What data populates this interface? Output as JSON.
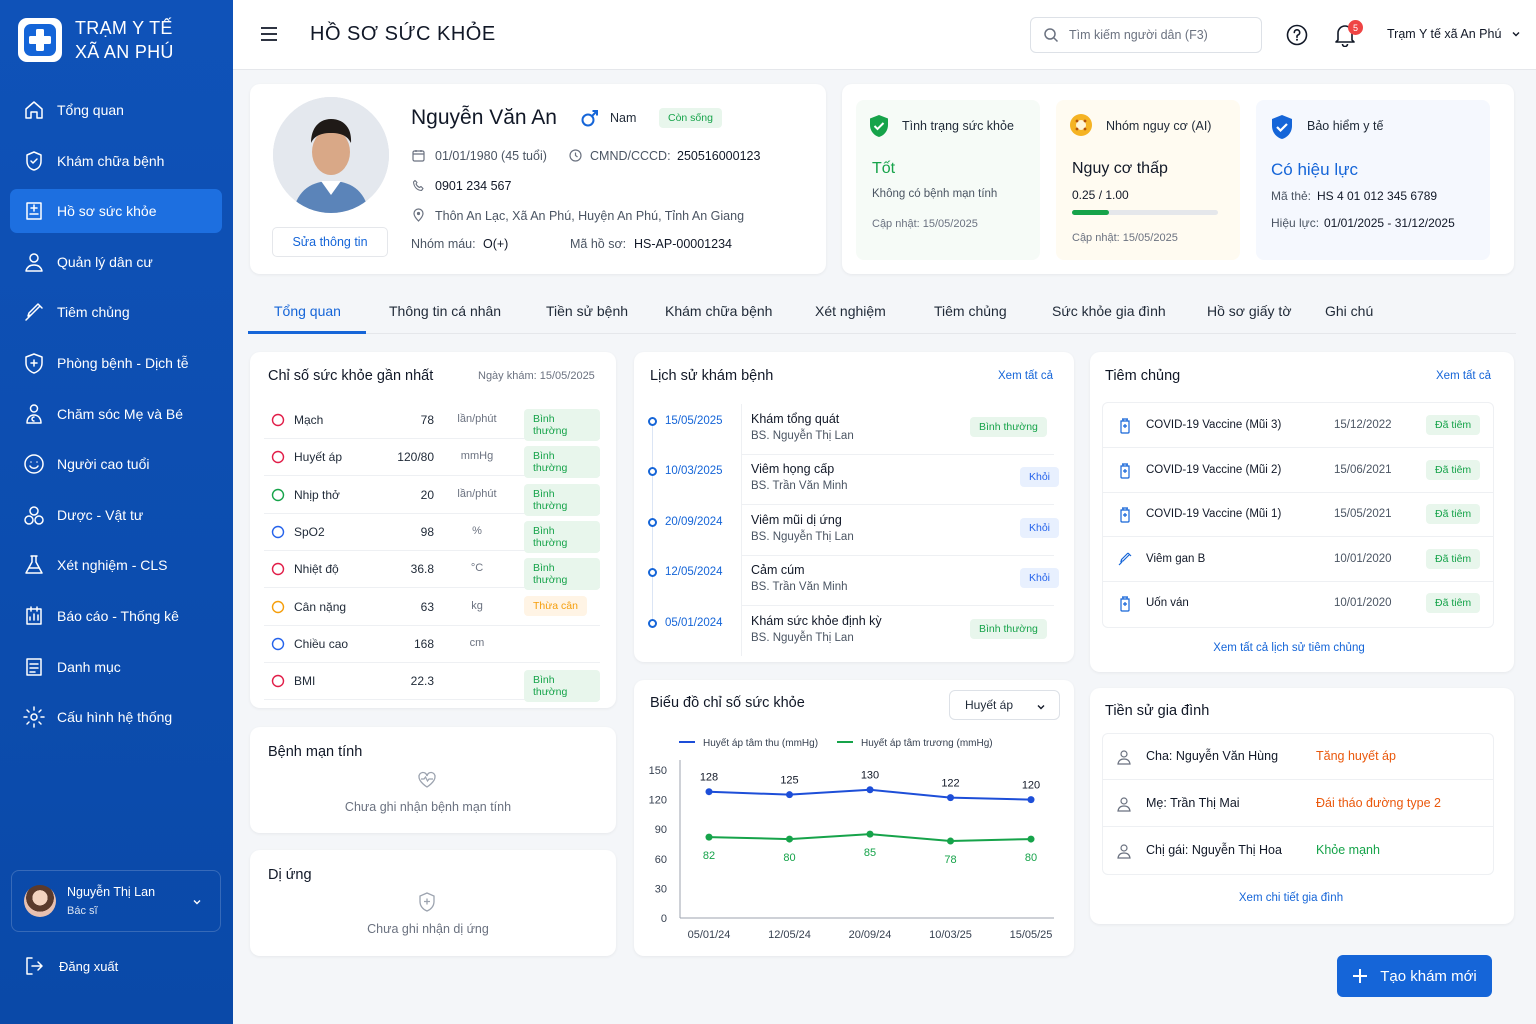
{
  "brand": {
    "line1": "TRẠM Y TẾ",
    "line2": "XÃ AN PHÚ"
  },
  "nav": [
    {
      "label": "Tổng quan",
      "icon": "home-icon"
    },
    {
      "label": "Khám chữa bệnh",
      "icon": "stethoscope-icon"
    },
    {
      "label": "Hồ sơ sức khỏe",
      "icon": "medical-record-icon",
      "active": true
    },
    {
      "label": "Quản lý dân cư",
      "icon": "user-icon"
    },
    {
      "label": "Tiêm chủng",
      "icon": "syringe-icon"
    },
    {
      "label": "Phòng bệnh - Dịch tễ",
      "icon": "shield-icon"
    },
    {
      "label": "Chăm sóc Mẹ và Bé",
      "icon": "mother-baby-icon"
    },
    {
      "label": "Người cao tuổi",
      "icon": "elderly-icon"
    },
    {
      "label": "Dược - Vật tư",
      "icon": "pills-icon"
    },
    {
      "label": "Xét nghiệm - CLS",
      "icon": "flask-icon"
    },
    {
      "label": "Báo cáo - Thống kê",
      "icon": "report-icon"
    },
    {
      "label": "Danh mục",
      "icon": "list-icon"
    },
    {
      "label": "Cấu hình hệ thống",
      "icon": "gear-icon"
    }
  ],
  "user": {
    "name": "Nguyễn Thị Lan",
    "role": "Bác sĩ"
  },
  "logout": "Đăng xuất",
  "header": {
    "title": "HỒ SƠ SỨC KHỎE",
    "search_placeholder": "Tìm kiếm người dân (F3)",
    "notif_count": "5",
    "org": "Trạm Y tế xã An Phú"
  },
  "patient": {
    "name": "Nguyễn Văn An",
    "gender": "Nam",
    "status": "Còn sống",
    "dob": "01/01/1980 (45 tuổi)",
    "id_label": "CMND/CCCD:",
    "id_value": "250516000123",
    "phone": "0901 234 567",
    "address": "Thôn An Lạc, Xã An Phú, Huyện An Phú, Tỉnh An Giang",
    "blood_label": "Nhóm máu:",
    "blood_value": "O(+)",
    "record_label": "Mã hồ sơ:",
    "record_value": "HS-AP-00001234",
    "edit": "Sửa thông tin"
  },
  "status_cards": {
    "health": {
      "title": "Tình trạng sức khỏe",
      "value": "Tốt",
      "desc": "Không có bệnh mạn tính",
      "updated": "Cập nhật: 15/05/2025"
    },
    "risk": {
      "title": "Nhóm nguy cơ (AI)",
      "value": "Nguy cơ thấp",
      "score": "0.25 / 1.00",
      "score_fraction": 0.25,
      "updated": "Cập nhật: 15/05/2025"
    },
    "insurance": {
      "title": "Bảo hiểm y tế",
      "value": "Có hiệu lực",
      "code_label": "Mã thẻ:",
      "code_value": "HS 4 01 012 345 6789",
      "valid_label": "Hiệu lực:",
      "valid_value": "01/01/2025 - 31/12/2025"
    }
  },
  "tabs": [
    "Tổng quan",
    "Thông tin cá nhân",
    "Tiền sử bệnh",
    "Khám chữa bệnh",
    "Xét nghiệm",
    "Tiêm chủng",
    "Sức khỏe gia đình",
    "Hồ sơ giấy tờ",
    "Ghi chú"
  ],
  "vitals": {
    "title": "Chỉ số sức khỏe gần nhất",
    "date": "Ngày khám: 15/05/2025",
    "rows": [
      {
        "name": "Mạch",
        "value": "78",
        "unit": "lần/phút",
        "status": "Bình thường",
        "icon": "heart-icon",
        "color": "#e11d48"
      },
      {
        "name": "Huyết áp",
        "value": "120/80",
        "unit": "mmHg",
        "status": "Bình thường",
        "icon": "blood-pressure-icon",
        "color": "#e11d48"
      },
      {
        "name": "Nhịp thở",
        "value": "20",
        "unit": "lần/phút",
        "status": "Bình thường",
        "icon": "lungs-icon",
        "color": "#16a34a"
      },
      {
        "name": "SpO2",
        "value": "98",
        "unit": "%",
        "status": "Bình thường",
        "icon": "oxygen-icon",
        "color": "#2563eb"
      },
      {
        "name": "Nhiệt độ",
        "value": "36.8",
        "unit": "°C",
        "status": "Bình thường",
        "icon": "thermometer-icon",
        "color": "#e11d48"
      },
      {
        "name": "Cân nặng",
        "value": "63",
        "unit": "kg",
        "status": "Thừa cân",
        "icon": "scale-icon",
        "color": "#f59e0b",
        "warn": true
      },
      {
        "name": "Chiều cao",
        "value": "168",
        "unit": "cm",
        "status": "",
        "icon": "height-icon",
        "color": "#2563eb"
      },
      {
        "name": "BMI",
        "value": "22.3",
        "unit": "",
        "status": "Bình thường",
        "icon": "bmi-icon",
        "color": "#e11d48"
      }
    ]
  },
  "chronic": {
    "title": "Bệnh mạn tính",
    "empty": "Chưa ghi nhận bệnh mạn tính"
  },
  "allergy": {
    "title": "Dị ứng",
    "empty": "Chưa ghi nhận dị ứng"
  },
  "history": {
    "title": "Lịch sử khám bệnh",
    "view_all": "Xem tất cả",
    "rows": [
      {
        "date": "15/05/2025",
        "title": "Khám tổng quát",
        "doctor": "BS. Nguyễn Thị Lan",
        "status": "Bình thường",
        "kind": "ok"
      },
      {
        "date": "10/03/2025",
        "title": "Viêm họng cấp",
        "doctor": "BS. Trần Văn Minh",
        "status": "Khỏi",
        "kind": "blue"
      },
      {
        "date": "20/09/2024",
        "title": "Viêm mũi dị ứng",
        "doctor": "BS. Nguyễn Thị Lan",
        "status": "Khỏi",
        "kind": "blue"
      },
      {
        "date": "12/05/2024",
        "title": "Cảm cúm",
        "doctor": "BS. Trần Văn Minh",
        "status": "Khỏi",
        "kind": "blue"
      },
      {
        "date": "05/01/2024",
        "title": "Khám sức khỏe định kỳ",
        "doctor": "BS. Nguyễn Thị Lan",
        "status": "Bình thường",
        "kind": "ok"
      }
    ]
  },
  "chart_title": "Biểu đồ chỉ số sức khỏe",
  "chart_select": "Huyết áp",
  "chart_data": {
    "type": "line",
    "categories": [
      "05/01/24",
      "12/05/24",
      "20/09/24",
      "10/03/25",
      "15/05/25"
    ],
    "series": [
      {
        "name": "Huyết áp tâm thu (mmHg)",
        "values": [
          128,
          125,
          130,
          122,
          120
        ],
        "color": "#1d4ed8"
      },
      {
        "name": "Huyết áp tâm trương (mmHg)",
        "values": [
          82,
          80,
          85,
          78,
          80
        ],
        "color": "#16a34a"
      }
    ],
    "yticks": [
      "150",
      "120",
      "90",
      "60",
      "30",
      "0"
    ],
    "ylim": [
      0,
      150
    ],
    "legend": "top"
  },
  "vaccines": {
    "title": "Tiêm chủng",
    "view_all": "Xem tất cả",
    "footer": "Xem tất cả lịch sử tiêm chủng",
    "rows": [
      {
        "name": "COVID-19 Vaccine (Mũi 3)",
        "date": "15/12/2022",
        "status": "Đã tiêm",
        "icon": "vial-icon"
      },
      {
        "name": "COVID-19 Vaccine (Mũi 2)",
        "date": "15/06/2021",
        "status": "Đã tiêm",
        "icon": "vial-icon"
      },
      {
        "name": "COVID-19 Vaccine (Mũi 1)",
        "date": "15/05/2021",
        "status": "Đã tiêm",
        "icon": "vial-icon"
      },
      {
        "name": "Viêm gan B",
        "date": "10/01/2020",
        "status": "Đã tiêm",
        "icon": "syringe-icon"
      },
      {
        "name": "Uốn ván",
        "date": "10/01/2020",
        "status": "Đã tiêm",
        "icon": "vial-icon"
      }
    ]
  },
  "family": {
    "title": "Tiền sử gia đình",
    "footer": "Xem chi tiết gia đình",
    "rows": [
      {
        "name": "Cha: Nguyễn Văn Hùng",
        "condition": "Tăng huyết áp",
        "color": "#ea580c"
      },
      {
        "name": "Mẹ: Trần Thị Mai",
        "condition": "Đái tháo đường type 2",
        "color": "#ea580c"
      },
      {
        "name": "Chị gái: Nguyễn Thị Hoa",
        "condition": "Khỏe mạnh",
        "color": "#16a34a"
      }
    ]
  },
  "new_exam": "Tạo khám mới"
}
